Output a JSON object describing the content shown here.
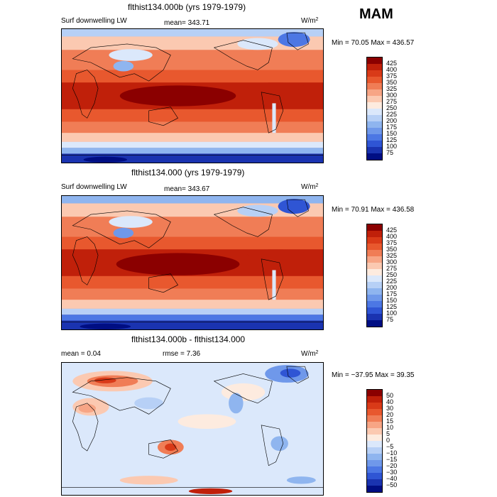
{
  "season": "MAM",
  "units_label": "W/m",
  "units_exp": "2",
  "panels": [
    {
      "title": "flthist134.000b (yrs 1979-1979)",
      "field": "Surf downwelling LW",
      "stat": "mean= 343.71",
      "minmax": "Min =  70.05 Max = 436.57",
      "levels": [
        "425",
        "400",
        "375",
        "350",
        "325",
        "300",
        "275",
        "250",
        "225",
        "200",
        "175",
        "150",
        "125",
        "100",
        "75"
      ],
      "colors": [
        "#8b0000",
        "#c0200a",
        "#d93a18",
        "#e8582e",
        "#f07d56",
        "#f7a585",
        "#fbc9b1",
        "#fdebdf",
        "#dbe8fb",
        "#b7d0f6",
        "#8fb5ef",
        "#6f98ea",
        "#4c77e4",
        "#2f55d4",
        "#1a33b0",
        "#000e83"
      ]
    },
    {
      "title": "flthist134.000 (yrs 1979-1979)",
      "field": "Surf downwelling LW",
      "stat": "mean= 343.67",
      "minmax": "Min =  70.91 Max = 436.58",
      "levels": [
        "425",
        "400",
        "375",
        "350",
        "325",
        "300",
        "275",
        "250",
        "225",
        "200",
        "175",
        "150",
        "125",
        "100",
        "75"
      ],
      "colors": [
        "#8b0000",
        "#c0200a",
        "#d93a18",
        "#e8582e",
        "#f07d56",
        "#f7a585",
        "#fbc9b1",
        "#fdebdf",
        "#dbe8fb",
        "#b7d0f6",
        "#8fb5ef",
        "#6f98ea",
        "#4c77e4",
        "#2f55d4",
        "#1a33b0",
        "#000e83"
      ]
    },
    {
      "title": "flthist134.000b - flthist134.000",
      "stat_mean": "mean =     0.04",
      "stat_rmse": "rmse =     7.36",
      "minmax": "Min = −37.95 Max =   39.35",
      "levels": [
        "50",
        "40",
        "30",
        "20",
        "15",
        "10",
        "5",
        "0",
        "−5",
        "−10",
        "−15",
        "−20",
        "−30",
        "−40",
        "−50"
      ],
      "colors": [
        "#8b0000",
        "#c0200a",
        "#d93a18",
        "#e8582e",
        "#f07d56",
        "#f7a585",
        "#fbc9b1",
        "#fdebdf",
        "#dbe8fb",
        "#b7d0f6",
        "#8fb5ef",
        "#6f98ea",
        "#4c77e4",
        "#2f55d4",
        "#1a33b0",
        "#000e83"
      ]
    }
  ],
  "chart_data": [
    {
      "type": "heatmap",
      "title": "flthist134.000b (yrs 1979-1979)",
      "variable": "Surf downwelling LW",
      "units": "W/m^2",
      "season": "MAM",
      "mean": 343.71,
      "min": 70.05,
      "max": 436.57,
      "contour_levels": [
        75,
        100,
        125,
        150,
        175,
        200,
        225,
        250,
        275,
        300,
        325,
        350,
        375,
        400,
        425
      ]
    },
    {
      "type": "heatmap",
      "title": "flthist134.000 (yrs 1979-1979)",
      "variable": "Surf downwelling LW",
      "units": "W/m^2",
      "season": "MAM",
      "mean": 343.67,
      "min": 70.91,
      "max": 436.58,
      "contour_levels": [
        75,
        100,
        125,
        150,
        175,
        200,
        225,
        250,
        275,
        300,
        325,
        350,
        375,
        400,
        425
      ]
    },
    {
      "type": "heatmap",
      "title": "flthist134.000b - flthist134.000",
      "units": "W/m^2",
      "season": "MAM",
      "mean": 0.04,
      "rmse": 7.36,
      "min": -37.95,
      "max": 39.35,
      "contour_levels": [
        -50,
        -40,
        -30,
        -20,
        -15,
        -10,
        -5,
        0,
        5,
        10,
        15,
        20,
        30,
        40,
        50
      ]
    }
  ]
}
